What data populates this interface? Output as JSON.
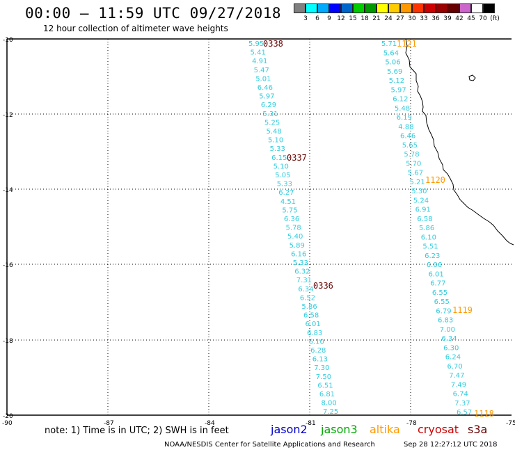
{
  "header": {
    "title": "00:00 – 11:59 UTC 09/27/2018",
    "subtitle": "12 hour collection of altimeter wave heights"
  },
  "legend": {
    "colors": [
      "#808080",
      "#00ffff",
      "#00aaff",
      "#0000ff",
      "#0066cc",
      "#00cc00",
      "#009900",
      "#ffff00",
      "#ffcc00",
      "#ff9900",
      "#ff3300",
      "#cc0000",
      "#990000",
      "#660000",
      "#cc66cc",
      "#ffffff",
      "#000000"
    ],
    "labels": [
      "3",
      "6",
      "9",
      "12",
      "15",
      "18",
      "21",
      "24",
      "27",
      "30",
      "33",
      "36",
      "39",
      "42",
      "45",
      "70",
      "(ft)"
    ]
  },
  "footer": {
    "note": "note: 1) Time is in UTC; 2) SWH is in feet",
    "satellites": [
      {
        "name": "jason2",
        "color": "#0000cc"
      },
      {
        "name": "jason3",
        "color": "#00aa00"
      },
      {
        "name": "altika",
        "color": "#ff9900"
      },
      {
        "name": "cryosat",
        "color": "#cc0000"
      },
      {
        "name": "s3a",
        "color": "#660000"
      }
    ],
    "credit": "NOAA/NESDIS Center for Satellite Applications and Research",
    "timestamp": "Sep 28 12:27:12 UTC 2018"
  },
  "axes": {
    "lon_ticks": [
      "-90",
      "-87",
      "-84",
      "-81",
      "-78",
      "-75"
    ],
    "lat_ticks": [
      "-10",
      "-12",
      "-14",
      "-16",
      "-18",
      "-20"
    ]
  },
  "tracks": [
    {
      "color": "#33ccdd",
      "values": [
        "5.95",
        "5.41",
        "4.91",
        "5.47",
        "5.01",
        "6.46",
        "5.97",
        "6.29",
        "5.31",
        "5.25",
        "5.48",
        "5.10",
        "5.33",
        "6.15",
        "5.10",
        "5.05",
        "5.33",
        "6.27",
        "4.51",
        "5.75",
        "6.36",
        "5.78",
        "5.40",
        "5.89",
        "6.16",
        "5.33",
        "6.32",
        "7.31",
        "6.34",
        "6.52",
        "5.86",
        "6.58",
        "6.01",
        "6.83",
        "6.10",
        "6.28",
        "6.13",
        "7.30",
        "7.50",
        "6.51",
        "6.81",
        "8.00",
        "7.25"
      ],
      "time_labels": [
        {
          "text": "0338",
          "color": "#660000"
        },
        {
          "text": "0337",
          "color": "#660000"
        },
        {
          "text": "0336",
          "color": "#660000"
        }
      ]
    },
    {
      "color": "#33ccdd",
      "values": [
        "5.71",
        "5.64",
        "5.06",
        "5.69",
        "5.12",
        "5.97",
        "6.12",
        "5.48",
        "6.19",
        "4.88",
        "6.46",
        "5.65",
        "5.78",
        "5.70",
        "5.67",
        "5.21",
        "5.30",
        "5.24",
        "6.91",
        "6.58",
        "5.86",
        "6.10",
        "5.51",
        "6.23",
        "6.06",
        "6.01",
        "6.77",
        "6.55",
        "6.55",
        "6.79",
        "6.83",
        "7.00",
        "6.34",
        "6.30",
        "6.24",
        "6.70",
        "7.47",
        "7.49",
        "6.74",
        "7.37",
        "6.57"
      ],
      "time_labels": [
        {
          "text": "1121",
          "color": "#ff9900"
        },
        {
          "text": "1120",
          "color": "#ff9900"
        },
        {
          "text": "1119",
          "color": "#ff9900"
        },
        {
          "text": "1118",
          "color": "#ff9900"
        }
      ]
    }
  ]
}
